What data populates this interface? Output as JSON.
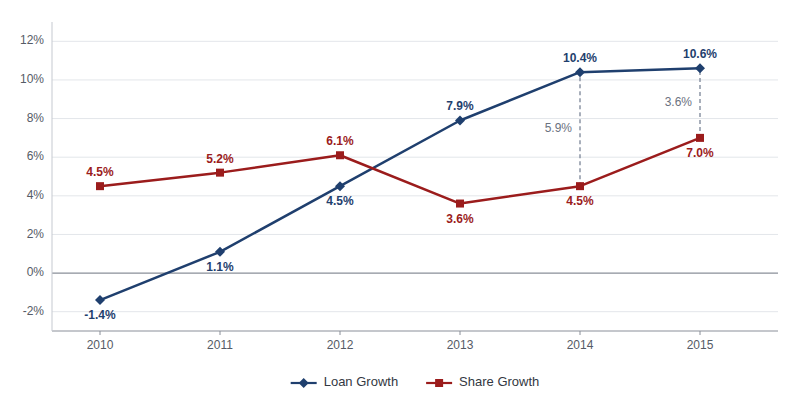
{
  "chart_data": {
    "type": "line",
    "x": [
      2010,
      2011,
      2012,
      2013,
      2014,
      2015
    ],
    "series": [
      {
        "name": "Loan Growth",
        "color": "#1F3F6E",
        "marker": "diamond",
        "values": [
          -1.4,
          1.1,
          4.5,
          7.9,
          10.4,
          10.6
        ],
        "value_labels": [
          "-1.4%",
          "1.1%",
          "4.5%",
          "7.9%",
          "10.4%",
          "10.6%"
        ]
      },
      {
        "name": "Share Growth",
        "color": "#9B1C1C",
        "marker": "square",
        "values": [
          4.5,
          5.2,
          6.1,
          3.6,
          4.5,
          7.0
        ],
        "value_labels": [
          "4.5%",
          "5.2%",
          "6.1%",
          "3.6%",
          "4.5%",
          "7.0%"
        ]
      }
    ],
    "xlim": [
      2009.6,
      2015.65
    ],
    "xticks": [
      2010,
      2011,
      2012,
      2013,
      2014,
      2015
    ],
    "ylim": [
      -3,
      13
    ],
    "yticks": [
      {
        "value": -2,
        "label": "-2%"
      },
      {
        "value": 0,
        "label": "0%"
      },
      {
        "value": 2,
        "label": "2%"
      },
      {
        "value": 4,
        "label": "4%"
      },
      {
        "value": 6,
        "label": "6%"
      },
      {
        "value": 8,
        "label": "8%"
      },
      {
        "value": 10,
        "label": "10%"
      },
      {
        "value": 12,
        "label": "12%"
      }
    ],
    "annotations": [
      {
        "text": "5.9%",
        "x": 2014,
        "y": [
          4.5,
          10.4
        ]
      },
      {
        "text": "3.6%",
        "x": 2015,
        "y": [
          7.0,
          10.6
        ]
      }
    ],
    "grid": true,
    "legend": "bottom",
    "data_labels": true
  }
}
